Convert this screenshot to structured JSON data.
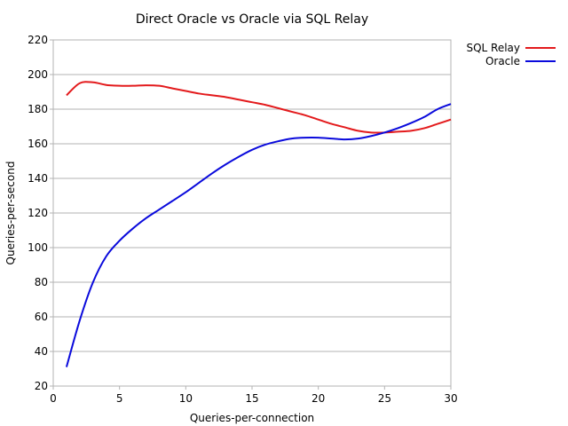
{
  "chart_data": {
    "type": "line",
    "title": "Direct Oracle vs Oracle via SQL Relay",
    "xlabel": "Queries-per-connection",
    "ylabel": "Queries-per-second",
    "xlim": [
      0,
      30
    ],
    "ylim": [
      20,
      220
    ],
    "xticks": [
      0,
      5,
      10,
      15,
      20,
      25,
      30
    ],
    "yticks": [
      20,
      40,
      60,
      80,
      100,
      120,
      140,
      160,
      180,
      200,
      220
    ],
    "grid": "horizontal",
    "legend_position": "top-right",
    "series": [
      {
        "name": "SQL Relay",
        "color": "#e31a1c",
        "x": [
          1,
          2,
          3,
          4,
          5,
          6,
          7,
          8,
          9,
          10,
          11,
          12,
          13,
          14,
          15,
          16,
          17,
          18,
          19,
          20,
          21,
          22,
          23,
          24,
          25,
          26,
          27,
          28,
          29,
          30
        ],
        "y": [
          188,
          195,
          195.5,
          194,
          193.5,
          193.5,
          193.8,
          193.5,
          192,
          190.5,
          189,
          188,
          187,
          185.5,
          184,
          182.5,
          180.5,
          178.5,
          176.5,
          174,
          171.5,
          169.5,
          167.5,
          166.5,
          166.5,
          167,
          167.5,
          169,
          171.5,
          174
        ]
      },
      {
        "name": "Oracle",
        "color": "#0a0adc",
        "x": [
          1,
          2,
          3,
          4,
          5,
          6,
          7,
          8,
          9,
          10,
          11,
          12,
          13,
          14,
          15,
          16,
          17,
          18,
          19,
          20,
          21,
          22,
          23,
          24,
          25,
          26,
          27,
          28,
          29,
          30
        ],
        "y": [
          31,
          58,
          80,
          95,
          104,
          111,
          117,
          122,
          127,
          132,
          137.5,
          143,
          148,
          152.5,
          156.5,
          159.5,
          161.5,
          163,
          163.5,
          163.5,
          163,
          162.5,
          163,
          164.5,
          166.5,
          169,
          172,
          175.5,
          180,
          183
        ]
      }
    ]
  }
}
